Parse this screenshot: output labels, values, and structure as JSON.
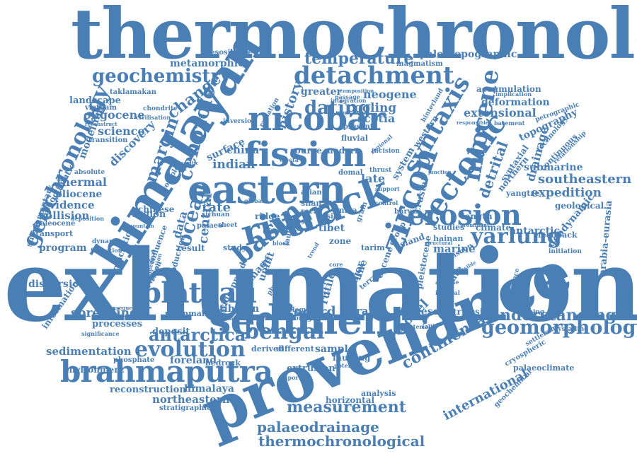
{
  "word_cloud": {
    "color": "#4a7fb5",
    "background": "#ffffff",
    "words": [
      {
        "text": "thermochronology"
      },
      {
        "text": "exhumation"
      },
      {
        "text": "provenance"
      },
      {
        "text": "himalayan"
      },
      {
        "text": "sediment"
      },
      {
        "text": "eastern"
      },
      {
        "text": "fission"
      },
      {
        "text": "nicobar"
      },
      {
        "text": "brahmaputra"
      },
      {
        "text": "track"
      },
      {
        "text": "river"
      },
      {
        "text": "zircon"
      },
      {
        "text": "erosion"
      },
      {
        "text": "tectonic"
      },
      {
        "text": "detachment"
      },
      {
        "text": "syntaxis"
      },
      {
        "text": "miocene"
      },
      {
        "text": "geochronology"
      },
      {
        "text": "plateau"
      },
      {
        "text": "bengal"
      },
      {
        "text": "evolution"
      },
      {
        "text": "geomorphology"
      },
      {
        "text": "yarlung"
      },
      {
        "text": "antarctica"
      },
      {
        "text": "basin"
      },
      {
        "text": "ocean"
      },
      {
        "text": "cenozoic"
      },
      {
        "text": "geochemistry"
      },
      {
        "text": "dating"
      },
      {
        "text": "continental"
      },
      {
        "text": "measurement"
      },
      {
        "text": "understanding"
      },
      {
        "text": "palaeodrainage"
      },
      {
        "text": "thermochronological"
      },
      {
        "text": "temperature"
      },
      {
        "text": "metamorphic"
      },
      {
        "text": "paleotopographic"
      },
      {
        "text": "history"
      },
      {
        "text": "change"
      },
      {
        "text": "margin"
      },
      {
        "text": "drainage"
      },
      {
        "text": "detrital"
      },
      {
        "text": "southeastern"
      },
      {
        "text": "expedition"
      },
      {
        "text": "international"
      },
      {
        "text": "sedimentation"
      },
      {
        "text": "record"
      },
      {
        "text": "model"
      },
      {
        "text": "spreading"
      },
      {
        "text": "rate"
      },
      {
        "text": "indian"
      },
      {
        "text": "cooling"
      },
      {
        "text": "scotia"
      },
      {
        "text": "neogene"
      },
      {
        "text": "extensional"
      },
      {
        "text": "deformation"
      },
      {
        "text": "topography"
      },
      {
        "text": "submarine"
      },
      {
        "text": "oligocene"
      },
      {
        "text": "science"
      },
      {
        "text": "discovery"
      },
      {
        "text": "thermal"
      },
      {
        "text": "pliocene"
      },
      {
        "text": "evidence"
      },
      {
        "text": "collision"
      },
      {
        "text": "program"
      },
      {
        "text": "sample"
      },
      {
        "text": "rapid"
      },
      {
        "text": "desert"
      },
      {
        "text": "triassic"
      },
      {
        "text": "foreland"
      },
      {
        "text": "himalaya"
      },
      {
        "text": "northeastern"
      },
      {
        "text": "reconstruction"
      },
      {
        "text": "environment"
      },
      {
        "text": "stratigraphic"
      },
      {
        "text": "geological"
      },
      {
        "text": "geodynamic"
      },
      {
        "text": "antarctic"
      },
      {
        "text": "arabia–eurasia"
      },
      {
        "text": "tibetan"
      },
      {
        "text": "processes"
      },
      {
        "text": "deposit"
      },
      {
        "text": "bedrock"
      },
      {
        "text": "extrusion"
      },
      {
        "text": "faulting"
      },
      {
        "text": "derived"
      },
      {
        "text": "different"
      },
      {
        "text": "horizontal"
      },
      {
        "text": "analysis"
      },
      {
        "text": "glaciation"
      },
      {
        "text": "dispersion"
      },
      {
        "text": "information"
      },
      {
        "text": "marine"
      },
      {
        "text": "silicate"
      },
      {
        "text": "pleistocene"
      },
      {
        "text": "climate"
      },
      {
        "text": "studies"
      },
      {
        "text": "length"
      },
      {
        "text": "accumulation"
      },
      {
        "text": "magmatism"
      },
      {
        "text": "greater"
      },
      {
        "text": "landscape"
      },
      {
        "text": "taklamakan"
      },
      {
        "text": "vietnam"
      },
      {
        "text": "modelling"
      },
      {
        "text": "paleoclimatic"
      },
      {
        "text": "supplementary"
      },
      {
        "text": "nesosilicate"
      },
      {
        "text": "central"
      },
      {
        "text": "data"
      },
      {
        "text": "china"
      },
      {
        "text": "surface"
      },
      {
        "text": "late"
      },
      {
        "text": "tibet"
      },
      {
        "text": "result"
      },
      {
        "text": "study"
      },
      {
        "text": "region"
      },
      {
        "text": "chinese"
      },
      {
        "text": "transport"
      },
      {
        "text": "paleocene"
      },
      {
        "text": "myanmar"
      },
      {
        "text": "phosphate"
      },
      {
        "text": "rutile"
      },
      {
        "text": "uplift"
      },
      {
        "text": "damage"
      },
      {
        "text": "widespread"
      },
      {
        "text": "subduction"
      },
      {
        "text": "source"
      },
      {
        "text": "modern"
      },
      {
        "text": "fluvial"
      },
      {
        "text": "present"
      },
      {
        "text": "integration"
      },
      {
        "text": "crustal"
      },
      {
        "text": "system"
      },
      {
        "text": "western"
      },
      {
        "text": "northern"
      },
      {
        "text": "syntaxial"
      },
      {
        "text": "yangtze"
      },
      {
        "text": "cryospheric"
      },
      {
        "text": "palaeoclimate"
      },
      {
        "text": "geochemical"
      },
      {
        "text": "mapping"
      },
      {
        "text": "crystalline"
      },
      {
        "text": "settlement"
      },
      {
        "text": "feedback"
      },
      {
        "text": "initiation"
      },
      {
        "text": "hainan"
      },
      {
        "text": "island"
      },
      {
        "text": "monsoon"
      },
      {
        "text": "tarim"
      },
      {
        "text": "group"
      },
      {
        "text": "zone"
      },
      {
        "text": "ridge"
      },
      {
        "text": "sand"
      },
      {
        "text": "asia"
      },
      {
        "text": "shan"
      },
      {
        "text": "rock"
      },
      {
        "text": "major"
      },
      {
        "text": "line"
      },
      {
        "text": "eocene"
      },
      {
        "text": "storage"
      },
      {
        "text": "potential"
      },
      {
        "text": "important"
      },
      {
        "text": "material"
      },
      {
        "text": "caucasus"
      },
      {
        "text": "continuous"
      },
      {
        "text": "technology"
      },
      {
        "text": "relationship"
      },
      {
        "text": "basement"
      },
      {
        "text": "implication"
      },
      {
        "text": "radiation"
      },
      {
        "text": "mica"
      },
      {
        "text": "asian"
      },
      {
        "text": "passage"
      },
      {
        "text": "incision"
      },
      {
        "text": "thrust"
      },
      {
        "text": "barwa"
      },
      {
        "text": "inversion"
      },
      {
        "text": "absolute"
      },
      {
        "text": "deposition"
      },
      {
        "text": "dynamic"
      },
      {
        "text": "formation"
      },
      {
        "text": "influence"
      },
      {
        "text": "sheet"
      },
      {
        "text": "palaeo"
      },
      {
        "text": "sichuan"
      },
      {
        "text": "global"
      },
      {
        "text": "georgia"
      },
      {
        "text": "geology"
      },
      {
        "text": "active"
      },
      {
        "text": "interval"
      },
      {
        "text": "analyse"
      },
      {
        "text": "difference"
      },
      {
        "text": "observation"
      },
      {
        "text": "significance"
      },
      {
        "text": "consequence"
      },
      {
        "text": "chondrite"
      },
      {
        "text": "civilisation"
      },
      {
        "text": "reconstruct"
      },
      {
        "text": "meteoritic"
      },
      {
        "text": "transition"
      },
      {
        "text": "complex"
      },
      {
        "text": "petrographic"
      },
      {
        "text": "ejecta"
      },
      {
        "text": "responsible"
      },
      {
        "text": "composition"
      },
      {
        "text": "wenchuan"
      },
      {
        "text": "hinterland"
      },
      {
        "text": "regional"
      },
      {
        "text": "domal"
      },
      {
        "text": "terrane"
      },
      {
        "text": "numerical"
      },
      {
        "text": "mountain"
      },
      {
        "text": "elevation"
      },
      {
        "text": "fault"
      },
      {
        "text": "physical"
      },
      {
        "text": "dome"
      },
      {
        "text": "core"
      },
      {
        "text": "block"
      },
      {
        "text": "range"
      },
      {
        "text": "support"
      },
      {
        "text": "control"
      },
      {
        "text": "junction"
      },
      {
        "text": "structural"
      },
      {
        "text": "younger"
      },
      {
        "text": "grain"
      },
      {
        "text": "prominent"
      },
      {
        "text": "possible"
      },
      {
        "text": "trend"
      }
    ]
  }
}
